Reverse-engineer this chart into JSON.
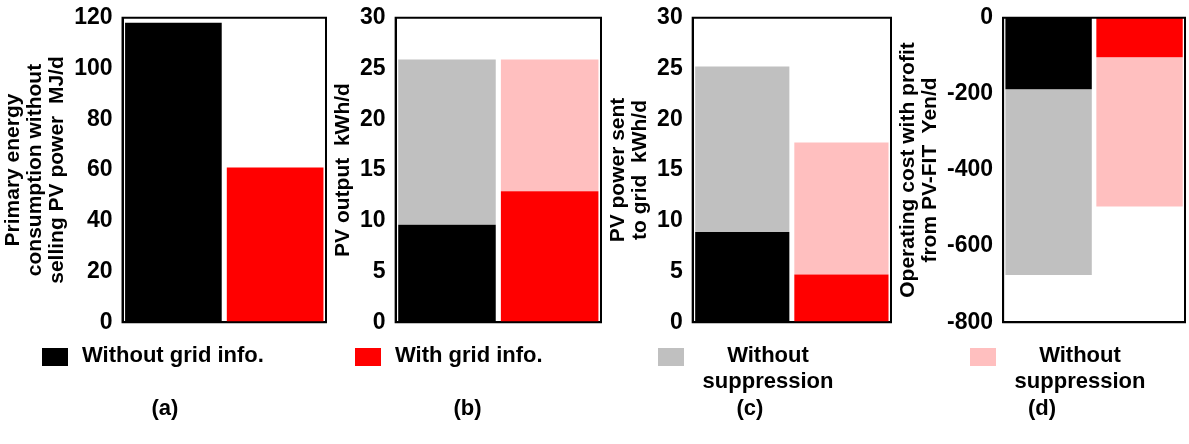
{
  "chart_data": [
    {
      "type": "bar",
      "xlabel": "(a)",
      "ylabel": "Primary energy\nconsumption without\nselling PV power  MJ/d",
      "categories": [
        null,
        null
      ],
      "stacked": true,
      "series": [
        {
          "color": "#000000",
          "values": [
            118,
            null
          ]
        },
        {
          "color": "#ff0000",
          "values": [
            null,
            61
          ]
        }
      ],
      "ylim": [
        0,
        120
      ],
      "yticks": [
        0,
        20,
        40,
        60,
        80,
        100,
        120
      ],
      "grid": false,
      "legend": false
    },
    {
      "type": "bar",
      "xlabel": "(b)",
      "ylabel": "PV output  kWh/d",
      "categories": [
        null,
        null
      ],
      "stacked": true,
      "series": [
        {
          "name": "Without grid info.",
          "color": "#000000",
          "values": [
            9.6,
            null
          ]
        },
        {
          "name": "Without suppression",
          "color": "#c0c0c0",
          "values": [
            16.3,
            null
          ]
        },
        {
          "name": "With grid info.",
          "color": "#ff0000",
          "values": [
            null,
            12.9
          ]
        },
        {
          "name": "Without suppression",
          "color": "#ffbfbf",
          "values": [
            null,
            13.0
          ]
        }
      ],
      "ylim": [
        0,
        30
      ],
      "yticks": [
        0,
        5,
        10,
        15,
        20,
        25,
        30
      ],
      "grid": false,
      "legend": "bottom"
    },
    {
      "type": "bar",
      "xlabel": "(c)",
      "ylabel": "PV power sent\nto grid  kWh/d",
      "categories": [
        null,
        null
      ],
      "stacked": true,
      "series": [
        {
          "color": "#000000",
          "values": [
            8.9,
            null
          ]
        },
        {
          "color": "#c0c0c0",
          "values": [
            16.3,
            null
          ]
        },
        {
          "color": "#ff0000",
          "values": [
            null,
            4.7
          ]
        },
        {
          "color": "#ffbfbf",
          "values": [
            null,
            13.0
          ]
        }
      ],
      "ylim": [
        0,
        30
      ],
      "yticks": [
        0,
        5,
        10,
        15,
        20,
        25,
        30
      ],
      "grid": false,
      "legend": false
    },
    {
      "type": "bar",
      "xlabel": "(d)",
      "ylabel": "Operating cost with profit\nfrom PV-FIT  Yen/d",
      "categories": [
        null,
        null
      ],
      "stacked": true,
      "series": [
        {
          "color": "#000000",
          "values": [
            -188,
            null
          ]
        },
        {
          "color": "#c0c0c0",
          "values": [
            -488,
            null
          ]
        },
        {
          "color": "#ff0000",
          "values": [
            null,
            -104
          ]
        },
        {
          "color": "#ffbfbf",
          "values": [
            null,
            -392
          ]
        }
      ],
      "ylim": [
        -800,
        0
      ],
      "yticks": [
        -800,
        -600,
        -400,
        -200,
        0
      ],
      "grid": false,
      "legend": false
    }
  ]
}
